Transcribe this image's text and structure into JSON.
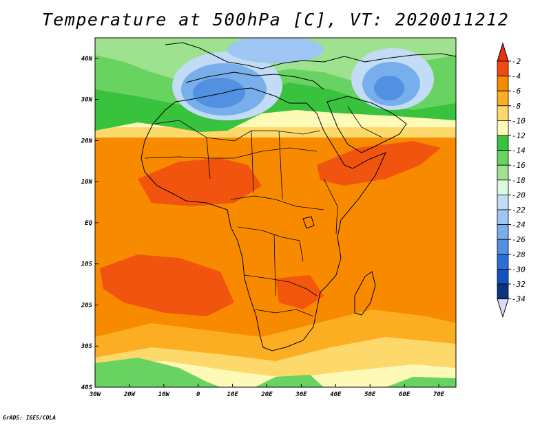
{
  "title": "Temperature at 500hPa [C], VT: 2020011212",
  "credit": "GrADS: IGES/COLA",
  "map": {
    "lon_range": [
      -30,
      75
    ],
    "lat_range": [
      -40,
      45
    ],
    "lon_ticks": [
      {
        "lon": -30,
        "label": "30W"
      },
      {
        "lon": -20,
        "label": "20W"
      },
      {
        "lon": -10,
        "label": "10W"
      },
      {
        "lon": 0,
        "label": "0"
      },
      {
        "lon": 10,
        "label": "10E"
      },
      {
        "lon": 20,
        "label": "20E"
      },
      {
        "lon": 30,
        "label": "30E"
      },
      {
        "lon": 40,
        "label": "40E"
      },
      {
        "lon": 50,
        "label": "50E"
      },
      {
        "lon": 60,
        "label": "60E"
      },
      {
        "lon": 70,
        "label": "70E"
      }
    ],
    "lat_ticks": [
      {
        "lat": 40,
        "label": "40N"
      },
      {
        "lat": 30,
        "label": "30N"
      },
      {
        "lat": 20,
        "label": "20N"
      },
      {
        "lat": 10,
        "label": "10N"
      },
      {
        "lat": 0,
        "label": "EQ"
      },
      {
        "lat": -10,
        "label": "10S"
      },
      {
        "lat": -20,
        "label": "20S"
      },
      {
        "lat": -30,
        "label": "30S"
      },
      {
        "lat": -40,
        "label": "40S"
      }
    ]
  },
  "colorbar": {
    "labels": [
      "-2",
      "-4",
      "-6",
      "-8",
      "-10",
      "-12",
      "-14",
      "-16",
      "-18",
      "-20",
      "-22",
      "-24",
      "-26",
      "-28",
      "-30",
      "-32",
      "-34"
    ],
    "colors": [
      "#f04a10",
      "#f88a00",
      "#fcae22",
      "#fdd96b",
      "#fdfab8",
      "#38c23e",
      "#69d362",
      "#9ee28f",
      "#dafae0",
      "#c2dcf6",
      "#9fc6f2",
      "#78aee9",
      "#5290e2",
      "#2b6fd6",
      "#1452bf",
      "#07357f"
    ],
    "top_color": "#e83010",
    "bottom_color": "#dcdcf8"
  }
}
